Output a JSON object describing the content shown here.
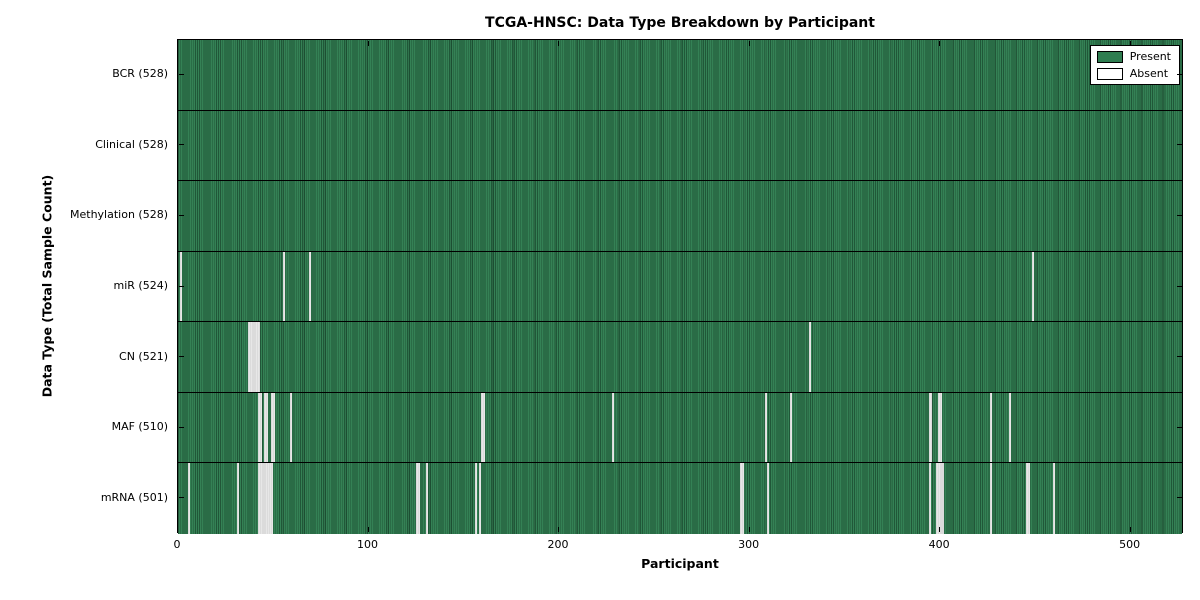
{
  "chart_data": {
    "type": "heatmap",
    "title": "TCGA-HNSC: Data Type Breakdown by Participant",
    "xlabel": "Participant",
    "ylabel": "Data Type (Total Sample Count)",
    "x_ticks": [
      0,
      100,
      200,
      300,
      400,
      500
    ],
    "x_max": 528,
    "grid": false,
    "legend_position": "upper right",
    "legend": [
      {
        "label": "Present",
        "color": "#2e7d50"
      },
      {
        "label": "Absent",
        "color": "#ffffff"
      }
    ],
    "colors": {
      "present": "#2e7d50",
      "absent": "#e7e7e7",
      "axis": "#000000"
    },
    "rows": [
      {
        "label": "BCR (528)",
        "name": "BCR",
        "present_count": 528,
        "absent": []
      },
      {
        "label": "Clinical (528)",
        "name": "Clinical",
        "present_count": 528,
        "absent": []
      },
      {
        "label": "Methylation (528)",
        "name": "Methylation",
        "present_count": 528,
        "absent": []
      },
      {
        "label": "miR (524)",
        "name": "miR",
        "present_count": 524,
        "absent": [
          {
            "start": 1,
            "count": 1
          },
          {
            "start": 55,
            "count": 1
          },
          {
            "start": 69,
            "count": 1
          },
          {
            "start": 448,
            "count": 1
          }
        ]
      },
      {
        "label": "CN (521)",
        "name": "CN",
        "present_count": 521,
        "absent": [
          {
            "start": 37,
            "count": 6
          },
          {
            "start": 331,
            "count": 1
          }
        ]
      },
      {
        "label": "MAF (510)",
        "name": "MAF",
        "present_count": 510,
        "absent": [
          {
            "start": 42,
            "count": 2
          },
          {
            "start": 45,
            "count": 2
          },
          {
            "start": 49,
            "count": 2
          },
          {
            "start": 59,
            "count": 1
          },
          {
            "start": 159,
            "count": 2
          },
          {
            "start": 228,
            "count": 1
          },
          {
            "start": 308,
            "count": 1
          },
          {
            "start": 321,
            "count": 1
          },
          {
            "start": 394,
            "count": 2
          },
          {
            "start": 399,
            "count": 2
          },
          {
            "start": 426,
            "count": 1
          },
          {
            "start": 436,
            "count": 1
          }
        ]
      },
      {
        "label": "mRNA (501)",
        "name": "mRNA",
        "present_count": 501,
        "absent": [
          {
            "start": 5,
            "count": 1
          },
          {
            "start": 31,
            "count": 1
          },
          {
            "start": 42,
            "count": 8
          },
          {
            "start": 125,
            "count": 2
          },
          {
            "start": 130,
            "count": 1
          },
          {
            "start": 156,
            "count": 1
          },
          {
            "start": 158,
            "count": 1
          },
          {
            "start": 295,
            "count": 2
          },
          {
            "start": 309,
            "count": 1
          },
          {
            "start": 394,
            "count": 1
          },
          {
            "start": 398,
            "count": 4
          },
          {
            "start": 426,
            "count": 1
          },
          {
            "start": 445,
            "count": 2
          },
          {
            "start": 459,
            "count": 1
          }
        ]
      }
    ]
  }
}
